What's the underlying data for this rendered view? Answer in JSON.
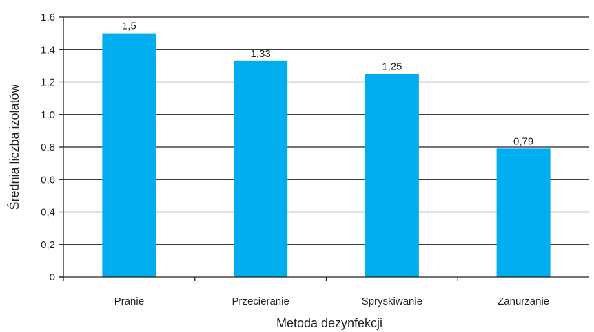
{
  "chart_data": {
    "type": "bar",
    "title": "",
    "xlabel": "Metoda dezynfekcji",
    "ylabel": "Średnia liczba izolatów",
    "categories": [
      "Pranie",
      "Przecieranie",
      "Spryskiwanie",
      "Zanurzanie"
    ],
    "values": [
      1.5,
      1.33,
      1.25,
      0.79
    ],
    "value_labels": [
      "1,5",
      "1,33",
      "1,25",
      "0,79"
    ],
    "ylim": [
      0,
      1.6
    ],
    "yticks": [
      0,
      0.2,
      0.4,
      0.6,
      0.8,
      1.0,
      1.2,
      1.4,
      1.6
    ],
    "ytick_labels": [
      "0",
      "0,2",
      "0,4",
      "0,6",
      "0,8",
      "1,0",
      "1,2",
      "1,4",
      "1,6"
    ],
    "grid": true,
    "legend": "none",
    "bar_color": "#00aeef",
    "grid_color": "#231f20"
  }
}
